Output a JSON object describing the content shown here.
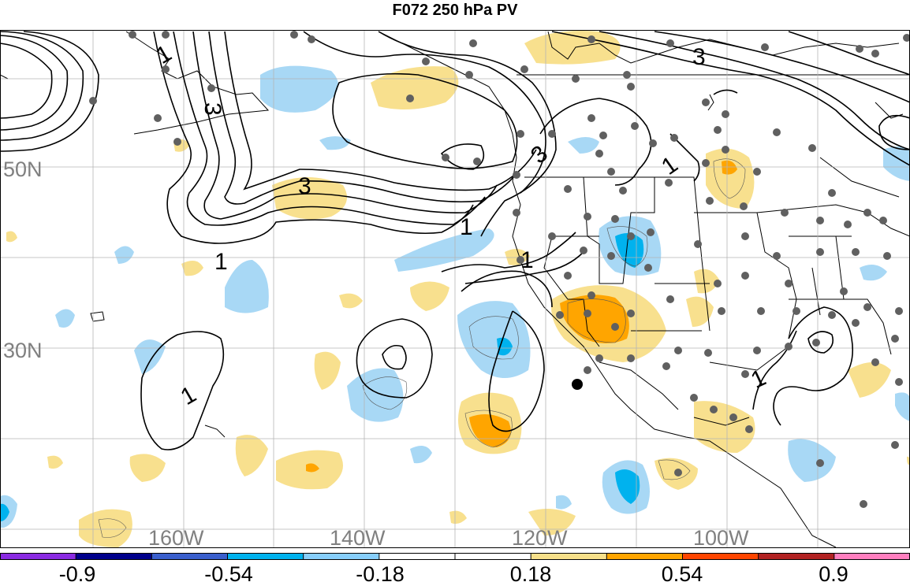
{
  "title": "F072 250 hPa PV",
  "map": {
    "lat_labels": [
      "50N",
      "30N"
    ],
    "lon_labels": [
      "160W",
      "140W",
      "120W",
      "100W"
    ],
    "contour_labels": [
      "1",
      "1",
      "1",
      "1",
      "1",
      "1",
      "1",
      "3",
      "3",
      "3",
      "3"
    ]
  },
  "colorbar": {
    "colors": [
      "#8a2be2",
      "#00008b",
      "#3a5fcd",
      "#00b2ee",
      "#87cefa",
      "#ffffff",
      "#ffffff",
      "#f7e08a",
      "#ffa500",
      "#ff4500",
      "#b22222",
      "#ff7fbf"
    ],
    "tick_labels": [
      "-0.9",
      "-0.54",
      "-0.18",
      "0.18",
      "0.54",
      "0.9"
    ]
  }
}
